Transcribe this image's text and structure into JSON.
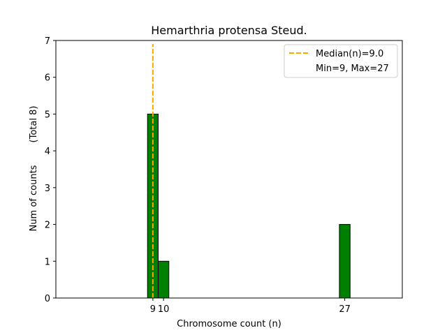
{
  "chart_data": {
    "type": "bar",
    "title": "Hemarthria protensa Steud.",
    "xlabel": "Chromosome count (n)",
    "ylabel": "Num of counts",
    "ylabel_note": "(Total 8)",
    "bins": [
      9,
      10,
      11,
      12,
      13,
      14,
      15,
      16,
      17,
      18,
      19,
      20,
      21,
      22,
      23,
      24,
      25,
      26,
      27,
      28,
      29,
      30
    ],
    "values": [
      5,
      1,
      0,
      0,
      0,
      0,
      0,
      0,
      0,
      0,
      0,
      0,
      0,
      0,
      0,
      0,
      0,
      0,
      2,
      0,
      0,
      0
    ],
    "bin_width": 1,
    "xlim": [
      -0.1,
      32.4
    ],
    "ylim": [
      0,
      7
    ],
    "xticks": [
      9,
      10,
      27
    ],
    "xtick_labels": [
      "9",
      "10",
      "27"
    ],
    "yticks": [
      0,
      1,
      2,
      3,
      4,
      5,
      6,
      7
    ],
    "ytick_labels": [
      "0",
      "1",
      "2",
      "3",
      "4",
      "5",
      "6",
      "7"
    ],
    "median": 9.0,
    "bar_color": "#008000",
    "median_color": "#FFA500",
    "legend": {
      "position": "top-right",
      "entries": [
        "Median(n)=9.0",
        "Min=9, Max=27"
      ]
    }
  }
}
